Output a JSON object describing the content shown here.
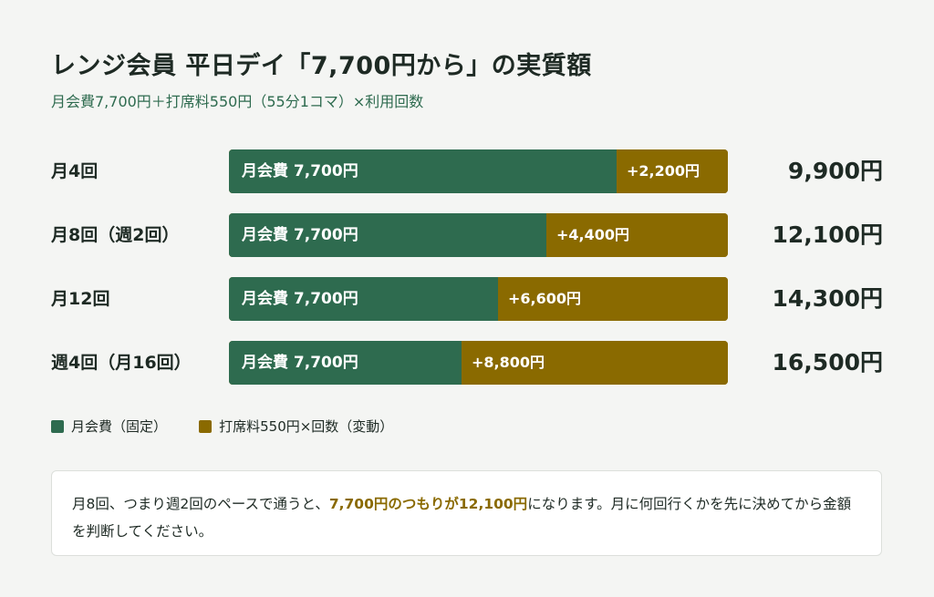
{
  "title": "レンジ会員 平日デイ「7,700円から」の実質額",
  "subtitle": "月会費7,700円＋打席料550円（55分1コマ）×利用回数",
  "colors": {
    "fixed": "#2e6b4f",
    "variable": "#8a6a00",
    "background": "#f4f5f3"
  },
  "chart_data": {
    "type": "bar",
    "orientation": "horizontal",
    "stacked": true,
    "categories": [
      "月4回",
      "月8回（週2回）",
      "月12回",
      "週4回（月16回）"
    ],
    "series": [
      {
        "name": "月会費（固定）",
        "values": [
          7700,
          7700,
          7700,
          7700
        ],
        "labels": [
          "月会費 7,700円",
          "月会費 7,700円",
          "月会費 7,700円",
          "月会費 7,700円"
        ]
      },
      {
        "name": "打席料550円×回数（変動）",
        "values": [
          2200,
          4400,
          6600,
          8800
        ],
        "labels": [
          "+2,200円",
          "+4,400円",
          "+6,600円",
          "+8,800円"
        ]
      }
    ],
    "totals": [
      9900,
      12100,
      14300,
      16500
    ],
    "total_labels": [
      "9,900円",
      "12,100円",
      "14,300円",
      "16,500円"
    ],
    "legend_position": "bottom-left",
    "grid": false
  },
  "legend": {
    "fixed": "月会費（固定）",
    "variable": "打席料550円×回数（変動）"
  },
  "note": {
    "text_before": "月8回、つまり週2回のペースで通うと、",
    "highlight": "7,700円のつもりが12,100円",
    "text_after": "になります。月に何回行くかを先に決めてから金額を判断してください。"
  }
}
